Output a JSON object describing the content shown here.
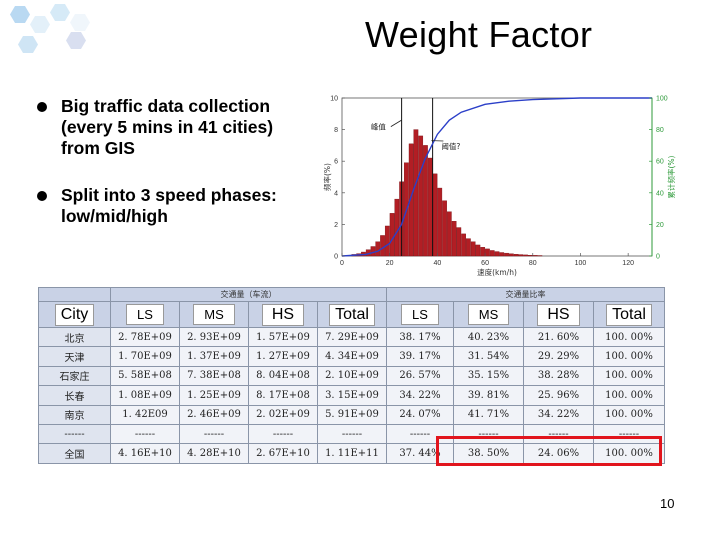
{
  "slide": {
    "title": "Weight Factor",
    "page_number": "10"
  },
  "bullets": [
    {
      "lines": [
        "Big traffic data collection",
        "(every 5 mins in 41 cities)",
        "from GIS"
      ]
    },
    {
      "lines": [
        "Split into 3 speed phases:",
        "low/mid/high"
      ]
    }
  ],
  "chart_data": {
    "type": "bar",
    "x_ticks": [
      "0",
      "20",
      "40",
      "60",
      "80",
      "100",
      "120"
    ],
    "y_left_ticks": [
      "0",
      "2",
      "4",
      "6",
      "8",
      "10"
    ],
    "y_right_ticks": [
      "0",
      "20",
      "40",
      "60",
      "80",
      "100"
    ],
    "xlabel": "速度(km/h)",
    "ylabel_left": "频率(%)",
    "ylabel_right": "累计频率(%)",
    "xlim": [
      0,
      130
    ],
    "ylim_left": [
      0,
      10
    ],
    "ylim_right": [
      0,
      100
    ],
    "bar_width": 2,
    "bars": [
      {
        "x": 5,
        "y": 0.1
      },
      {
        "x": 7,
        "y": 0.15
      },
      {
        "x": 9,
        "y": 0.25
      },
      {
        "x": 11,
        "y": 0.4
      },
      {
        "x": 13,
        "y": 0.6
      },
      {
        "x": 15,
        "y": 0.9
      },
      {
        "x": 17,
        "y": 1.3
      },
      {
        "x": 19,
        "y": 1.9
      },
      {
        "x": 21,
        "y": 2.7
      },
      {
        "x": 23,
        "y": 3.6
      },
      {
        "x": 25,
        "y": 4.7
      },
      {
        "x": 27,
        "y": 5.9
      },
      {
        "x": 29,
        "y": 7.1
      },
      {
        "x": 31,
        "y": 8.0
      },
      {
        "x": 33,
        "y": 7.6
      },
      {
        "x": 35,
        "y": 7.0
      },
      {
        "x": 37,
        "y": 6.2
      },
      {
        "x": 39,
        "y": 5.2
      },
      {
        "x": 41,
        "y": 4.3
      },
      {
        "x": 43,
        "y": 3.5
      },
      {
        "x": 45,
        "y": 2.8
      },
      {
        "x": 47,
        "y": 2.2
      },
      {
        "x": 49,
        "y": 1.8
      },
      {
        "x": 51,
        "y": 1.4
      },
      {
        "x": 53,
        "y": 1.1
      },
      {
        "x": 55,
        "y": 0.9
      },
      {
        "x": 57,
        "y": 0.7
      },
      {
        "x": 59,
        "y": 0.55
      },
      {
        "x": 61,
        "y": 0.45
      },
      {
        "x": 63,
        "y": 0.35
      },
      {
        "x": 65,
        "y": 0.28
      },
      {
        "x": 67,
        "y": 0.22
      },
      {
        "x": 69,
        "y": 0.18
      },
      {
        "x": 71,
        "y": 0.14
      },
      {
        "x": 73,
        "y": 0.11
      },
      {
        "x": 75,
        "y": 0.09
      },
      {
        "x": 77,
        "y": 0.07
      },
      {
        "x": 79,
        "y": 0.05
      },
      {
        "x": 81,
        "y": 0.04
      },
      {
        "x": 83,
        "y": 0.03
      }
    ],
    "cumulative": [
      {
        "x": 0,
        "y": 0
      },
      {
        "x": 10,
        "y": 1
      },
      {
        "x": 15,
        "y": 3
      },
      {
        "x": 20,
        "y": 8
      },
      {
        "x": 25,
        "y": 20
      },
      {
        "x": 30,
        "y": 42
      },
      {
        "x": 35,
        "y": 62
      },
      {
        "x": 40,
        "y": 77
      },
      {
        "x": 45,
        "y": 86
      },
      {
        "x": 50,
        "y": 91
      },
      {
        "x": 60,
        "y": 96
      },
      {
        "x": 70,
        "y": 98
      },
      {
        "x": 80,
        "y": 99
      },
      {
        "x": 100,
        "y": 100
      },
      {
        "x": 130,
        "y": 100
      }
    ],
    "vlines": [
      25,
      38
    ],
    "annotations": [
      {
        "text": "峰值",
        "x": 23,
        "y": 8.0
      },
      {
        "text": "阈值?",
        "x": 40,
        "y": 6.9
      }
    ],
    "colors": {
      "bars": "#b21e24",
      "cumulative": "#2b3fc8",
      "right_axis": "#2e9a3a"
    }
  },
  "table": {
    "group_headers": {
      "volume": "交通量（车流）",
      "ratio": "交通量比率"
    },
    "columns": [
      "City",
      "LS",
      "MS",
      "HS",
      "Total",
      "LS",
      "MS",
      "HS",
      "Total"
    ],
    "rows": [
      [
        "北京",
        "2. 78E+09",
        "2. 93E+09",
        "1. 57E+09",
        "7. 29E+09",
        "38. 17%",
        "40. 23%",
        "21. 60%",
        "100. 00%"
      ],
      [
        "天津",
        "1. 70E+09",
        "1. 37E+09",
        "1. 27E+09",
        "4. 34E+09",
        "39. 17%",
        "31. 54%",
        "29. 29%",
        "100. 00%"
      ],
      [
        "石家庄",
        "5. 58E+08",
        "7. 38E+08",
        "8. 04E+08",
        "2. 10E+09",
        "26. 57%",
        "35. 15%",
        "38. 28%",
        "100. 00%"
      ],
      [
        "长春",
        "1. 08E+09",
        "1. 25E+09",
        "8. 17E+08",
        "3. 15E+09",
        "34. 22%",
        "39. 81%",
        "25. 96%",
        "100. 00%"
      ],
      [
        "南京",
        "1. 42E09",
        "2. 46E+09",
        "2. 02E+09",
        "5. 91E+09",
        "24. 07%",
        "41. 71%",
        "34. 22%",
        "100. 00%"
      ],
      [
        "------",
        "------",
        "------",
        "------",
        "------",
        "------",
        "------",
        "------",
        "------"
      ],
      [
        "全国",
        "4. 16E+10",
        "4. 28E+10",
        "2. 67E+10",
        "1. 11E+11",
        "37. 44%",
        "38. 50%",
        "24. 06%",
        "100. 00%"
      ]
    ]
  },
  "colors": {
    "highlight": "#e1141c",
    "table_header": "#c9d2e6",
    "table_cell": "#f1f3f8"
  }
}
